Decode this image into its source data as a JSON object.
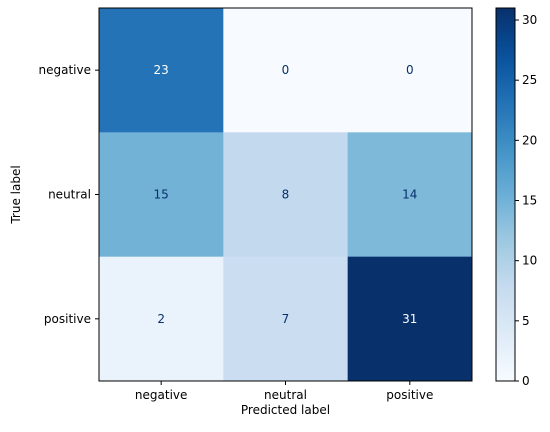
{
  "chart_data": {
    "type": "heatmap",
    "title": "",
    "xlabel": "Predicted label",
    "ylabel": "True label",
    "x_categories": [
      "negative",
      "neutral",
      "positive"
    ],
    "y_categories": [
      "negative",
      "neutral",
      "positive"
    ],
    "matrix": [
      [
        23,
        0,
        0
      ],
      [
        15,
        8,
        14
      ],
      [
        2,
        7,
        31
      ]
    ],
    "cell_labels": [
      [
        "23",
        "0",
        "0"
      ],
      [
        "15",
        "8",
        "14"
      ],
      [
        "2",
        "7",
        "31"
      ]
    ],
    "colormap": "Blues",
    "vmin": 0,
    "vmax": 31,
    "colorbar_ticks": [
      0,
      5,
      10,
      15,
      20,
      25,
      30
    ],
    "colorbar_tick_labels": [
      "0",
      "5",
      "10",
      "15",
      "20",
      "25",
      "30"
    ],
    "dark_text_color": "#08306b",
    "light_text_color": "#ffffff"
  }
}
